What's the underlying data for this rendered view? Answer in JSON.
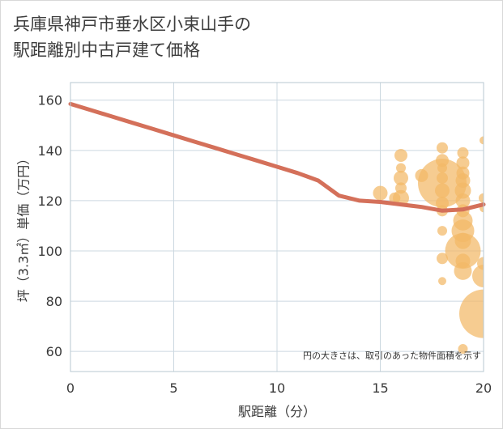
{
  "title": {
    "line1": "兵庫県神戸市垂水区小束山手の",
    "line2": "駅距離別中古戸建て価格"
  },
  "colors": {
    "line": "#d4705a",
    "bubble": "#f2b866",
    "grid": "#ccd8e0",
    "plot_border": "#b7c7d1"
  },
  "chart_data": {
    "type": "scatter",
    "xlabel": "駅距離（分）",
    "ylabel": "坪（3.3㎡）単価（万円）",
    "xlim": [
      0,
      20
    ],
    "ylim": [
      52,
      167
    ],
    "x_ticks": [
      0,
      5,
      10,
      15,
      20
    ],
    "y_ticks": [
      60,
      80,
      100,
      120,
      140,
      160
    ],
    "grid": true,
    "annotation": "円の大きさは、取引のあった物件面積を示す",
    "trend_line": {
      "x": [
        0,
        1,
        2,
        3,
        4,
        5,
        6,
        7,
        8,
        9,
        10,
        11,
        12,
        13,
        14,
        15,
        16,
        17,
        18,
        19,
        20
      ],
      "y": [
        158.5,
        156.0,
        153.5,
        151.0,
        148.5,
        146.0,
        143.5,
        141.0,
        138.5,
        136.0,
        133.5,
        131.0,
        128.0,
        122.0,
        120.0,
        119.5,
        118.5,
        117.5,
        116.0,
        116.5,
        118.5
      ]
    },
    "bubbles": [
      {
        "x": 15.0,
        "y": 123,
        "r": 9
      },
      {
        "x": 15.7,
        "y": 121,
        "r": 7
      },
      {
        "x": 16.0,
        "y": 138,
        "r": 8
      },
      {
        "x": 16.0,
        "y": 133,
        "r": 6
      },
      {
        "x": 16.0,
        "y": 129,
        "r": 9
      },
      {
        "x": 16.0,
        "y": 125,
        "r": 7
      },
      {
        "x": 16.0,
        "y": 121,
        "r": 10
      },
      {
        "x": 17.0,
        "y": 130,
        "r": 8
      },
      {
        "x": 18.0,
        "y": 141,
        "r": 7
      },
      {
        "x": 18.0,
        "y": 136,
        "r": 8
      },
      {
        "x": 18.0,
        "y": 133,
        "r": 6
      },
      {
        "x": 18.0,
        "y": 129,
        "r": 7
      },
      {
        "x": 18.0,
        "y": 127,
        "r": 30
      },
      {
        "x": 18.0,
        "y": 124,
        "r": 9
      },
      {
        "x": 18.0,
        "y": 119,
        "r": 8
      },
      {
        "x": 18.0,
        "y": 116,
        "r": 7
      },
      {
        "x": 18.0,
        "y": 108,
        "r": 6
      },
      {
        "x": 18.0,
        "y": 97,
        "r": 7
      },
      {
        "x": 18.0,
        "y": 88,
        "r": 5
      },
      {
        "x": 19.0,
        "y": 139,
        "r": 7
      },
      {
        "x": 19.0,
        "y": 135,
        "r": 8
      },
      {
        "x": 19.0,
        "y": 131,
        "r": 8
      },
      {
        "x": 19.0,
        "y": 128,
        "r": 9
      },
      {
        "x": 19.0,
        "y": 124,
        "r": 10
      },
      {
        "x": 19.0,
        "y": 120,
        "r": 9
      },
      {
        "x": 19.0,
        "y": 116,
        "r": 8
      },
      {
        "x": 19.0,
        "y": 112,
        "r": 12
      },
      {
        "x": 19.0,
        "y": 108,
        "r": 14
      },
      {
        "x": 19.0,
        "y": 104,
        "r": 10
      },
      {
        "x": 19.0,
        "y": 100,
        "r": 22
      },
      {
        "x": 19.0,
        "y": 96,
        "r": 9
      },
      {
        "x": 19.0,
        "y": 92,
        "r": 11
      },
      {
        "x": 19.0,
        "y": 61,
        "r": 6
      },
      {
        "x": 20.0,
        "y": 144,
        "r": 5
      },
      {
        "x": 20.0,
        "y": 121,
        "r": 6
      },
      {
        "x": 20.0,
        "y": 117,
        "r": 5
      },
      {
        "x": 20.0,
        "y": 95,
        "r": 8
      },
      {
        "x": 20.0,
        "y": 90,
        "r": 14
      },
      {
        "x": 20.0,
        "y": 75,
        "r": 30
      }
    ]
  }
}
